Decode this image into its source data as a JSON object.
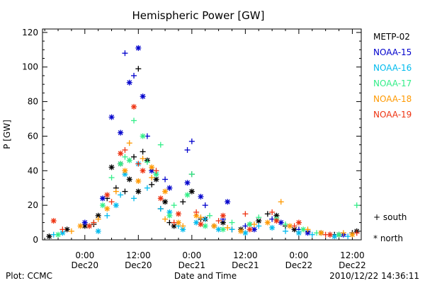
{
  "footer": {
    "plot_label": "Plot: CCMC",
    "timestamp": "2010/12/22 14:36:11"
  },
  "chart_data": {
    "type": "scatter",
    "title": "Hemispheric Power [GW]",
    "xlabel": "Date and Time",
    "ylabel": "P [GW]",
    "ylim": [
      0,
      122
    ],
    "xlim_hours": [
      -9.5,
      62
    ],
    "yticks": [
      0,
      20,
      40,
      60,
      80,
      100,
      120
    ],
    "xticks": [
      {
        "hour": 0,
        "time": "0:00",
        "date": "Dec20"
      },
      {
        "hour": 12,
        "time": "12:00",
        "date": "Dec20"
      },
      {
        "hour": 24,
        "time": "0:00",
        "date": "Dec21"
      },
      {
        "hour": 36,
        "time": "12:00",
        "date": "Dec21"
      },
      {
        "hour": 48,
        "time": "0:00",
        "date": "Dec22"
      },
      {
        "hour": 60,
        "time": "12:00",
        "date": "Dec22"
      }
    ],
    "grid": false,
    "legend_position": "right",
    "marker_legend": [
      {
        "symbol": "+",
        "label": "south"
      },
      {
        "symbol": "*",
        "label": "north"
      }
    ],
    "series": [
      {
        "name": "METP-02",
        "color": "#000000",
        "south": [
          [
            2,
            9
          ],
          [
            5,
            24
          ],
          [
            7,
            30
          ],
          [
            9,
            28
          ],
          [
            11,
            48
          ],
          [
            12,
            99
          ],
          [
            13,
            51
          ],
          [
            15,
            32
          ],
          [
            17,
            18
          ],
          [
            19,
            10
          ],
          [
            22,
            22
          ],
          [
            24,
            38
          ],
          [
            26,
            12
          ],
          [
            29,
            8
          ],
          [
            33,
            6
          ],
          [
            37,
            9
          ],
          [
            41,
            15
          ],
          [
            45,
            8
          ],
          [
            50,
            5
          ],
          [
            56,
            3
          ],
          [
            60,
            4
          ]
        ],
        "north": [
          [
            -8,
            2
          ],
          [
            -4,
            6
          ],
          [
            0,
            8
          ],
          [
            3,
            14
          ],
          [
            6,
            42
          ],
          [
            8,
            44
          ],
          [
            10,
            35
          ],
          [
            12,
            28
          ],
          [
            14,
            46
          ],
          [
            16,
            35
          ],
          [
            18,
            22
          ],
          [
            20,
            8
          ],
          [
            24,
            28
          ],
          [
            27,
            12
          ],
          [
            31,
            10
          ],
          [
            35,
            6
          ],
          [
            39,
            11
          ],
          [
            43,
            14
          ],
          [
            47,
            6
          ],
          [
            53,
            4
          ],
          [
            57,
            3
          ],
          [
            61,
            5
          ]
        ]
      },
      {
        "name": "NOAA-15",
        "color": "#0000cc",
        "south": [
          [
            9,
            108
          ],
          [
            11,
            95
          ],
          [
            14,
            60
          ],
          [
            18,
            35
          ],
          [
            23,
            52
          ],
          [
            24,
            57
          ],
          [
            27,
            20
          ],
          [
            31,
            12
          ],
          [
            36,
            8
          ],
          [
            42,
            12
          ],
          [
            48,
            6
          ],
          [
            55,
            3
          ]
        ],
        "north": [
          [
            0,
            10
          ],
          [
            4,
            24
          ],
          [
            6,
            71
          ],
          [
            8,
            62
          ],
          [
            10,
            91
          ],
          [
            12,
            111
          ],
          [
            13,
            83
          ],
          [
            15,
            40
          ],
          [
            19,
            30
          ],
          [
            23,
            33
          ],
          [
            26,
            25
          ],
          [
            32,
            22
          ],
          [
            38,
            6
          ],
          [
            44,
            10
          ],
          [
            50,
            4
          ],
          [
            58,
            3
          ]
        ]
      },
      {
        "name": "NOAA-16",
        "color": "#00bbee",
        "south": [
          [
            -7,
            3
          ],
          [
            1,
            8
          ],
          [
            5,
            14
          ],
          [
            8,
            26
          ],
          [
            11,
            24
          ],
          [
            14,
            30
          ],
          [
            17,
            18
          ],
          [
            21,
            8
          ],
          [
            27,
            12
          ],
          [
            33,
            6
          ],
          [
            39,
            8
          ],
          [
            45,
            5
          ],
          [
            51,
            3
          ],
          [
            59,
            2
          ]
        ],
        "north": [
          [
            -5,
            4
          ],
          [
            3,
            5
          ],
          [
            7,
            20
          ],
          [
            9,
            38
          ],
          [
            12,
            44
          ],
          [
            16,
            38
          ],
          [
            19,
            16
          ],
          [
            22,
            6
          ],
          [
            25,
            10
          ],
          [
            30,
            6
          ],
          [
            36,
            4
          ],
          [
            42,
            7
          ],
          [
            48,
            4
          ],
          [
            56,
            2
          ]
        ]
      },
      {
        "name": "NOAA-17",
        "color": "#33ee88",
        "south": [
          [
            2,
            10
          ],
          [
            6,
            36
          ],
          [
            9,
            48
          ],
          [
            11,
            69
          ],
          [
            14,
            45
          ],
          [
            17,
            55
          ],
          [
            20,
            20
          ],
          [
            24,
            38
          ],
          [
            28,
            14
          ],
          [
            33,
            10
          ],
          [
            39,
            13
          ],
          [
            45,
            9
          ],
          [
            52,
            4
          ],
          [
            61,
            20
          ]
        ],
        "north": [
          [
            -6,
            3
          ],
          [
            4,
            20
          ],
          [
            8,
            44
          ],
          [
            10,
            46
          ],
          [
            13,
            60
          ],
          [
            16,
            38
          ],
          [
            19,
            14
          ],
          [
            23,
            26
          ],
          [
            27,
            8
          ],
          [
            31,
            6
          ],
          [
            37,
            9
          ],
          [
            43,
            12
          ],
          [
            49,
            6
          ],
          [
            57,
            3
          ]
        ]
      },
      {
        "name": "NOAA-18",
        "color": "#ff9900",
        "south": [
          [
            -3,
            5
          ],
          [
            3,
            12
          ],
          [
            7,
            28
          ],
          [
            10,
            56
          ],
          [
            13,
            47
          ],
          [
            15,
            36
          ],
          [
            18,
            12
          ],
          [
            22,
            8
          ],
          [
            26,
            13
          ],
          [
            32,
            7
          ],
          [
            38,
            9
          ],
          [
            44,
            22
          ],
          [
            50,
            6
          ],
          [
            58,
            4
          ]
        ],
        "north": [
          [
            -1,
            8
          ],
          [
            5,
            18
          ],
          [
            9,
            40
          ],
          [
            12,
            34
          ],
          [
            15,
            42
          ],
          [
            18,
            28
          ],
          [
            21,
            10
          ],
          [
            25,
            14
          ],
          [
            29,
            8
          ],
          [
            35,
            5
          ],
          [
            41,
            10
          ],
          [
            46,
            8
          ],
          [
            53,
            4
          ],
          [
            60,
            3
          ]
        ]
      },
      {
        "name": "NOAA-19",
        "color": "#ee3311",
        "south": [
          [
            -5,
            6
          ],
          [
            2,
            10
          ],
          [
            6,
            22
          ],
          [
            9,
            52
          ],
          [
            12,
            44
          ],
          [
            16,
            40
          ],
          [
            20,
            10
          ],
          [
            25,
            16
          ],
          [
            30,
            11
          ],
          [
            36,
            15
          ],
          [
            42,
            16
          ],
          [
            47,
            8
          ],
          [
            54,
            3
          ],
          [
            61,
            4
          ]
        ],
        "north": [
          [
            -7,
            11
          ],
          [
            1,
            8
          ],
          [
            5,
            26
          ],
          [
            8,
            50
          ],
          [
            11,
            77
          ],
          [
            13,
            40
          ],
          [
            17,
            24
          ],
          [
            21,
            15
          ],
          [
            26,
            9
          ],
          [
            31,
            14
          ],
          [
            37,
            6
          ],
          [
            43,
            11
          ],
          [
            48,
            10
          ],
          [
            55,
            3
          ]
        ]
      }
    ]
  }
}
